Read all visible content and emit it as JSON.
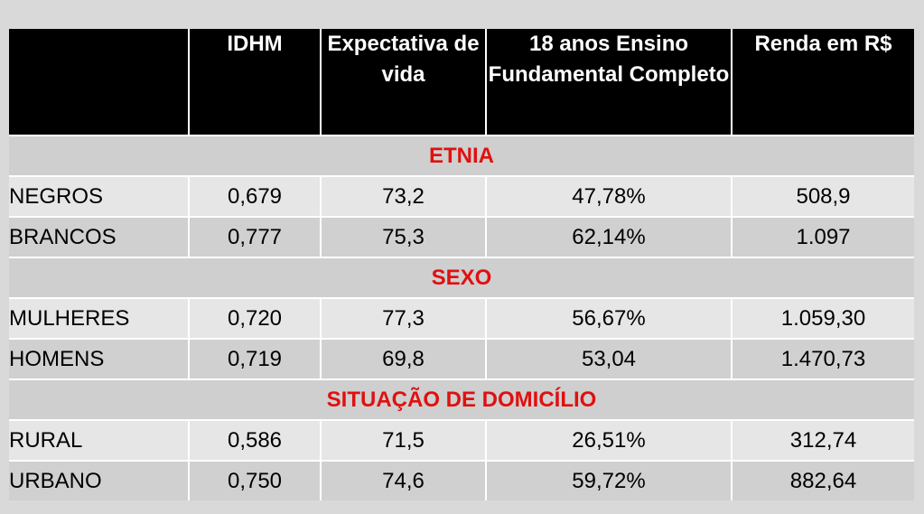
{
  "headers": [
    "",
    "IDHM",
    "Expectativa de vida",
    "18 anos Ensino Fundamental Completo",
    "Renda em R$"
  ],
  "sections": [
    {
      "title": "ETNIA",
      "rows": [
        [
          "NEGROS",
          "0,679",
          "73,2",
          "47,78%",
          "508,9"
        ],
        [
          "BRANCOS",
          "0,777",
          "75,3",
          "62,14%",
          "1.097"
        ]
      ]
    },
    {
      "title": "SEXO",
      "rows": [
        [
          "MULHERES",
          "0,720",
          "77,3",
          "56,67%",
          "1.059,30"
        ],
        [
          "HOMENS",
          "0,719",
          "69,8",
          "53,04",
          "1.470,73"
        ]
      ]
    },
    {
      "title": "SITUAÇÃO DE DOMICÍLIO",
      "rows": [
        [
          "RURAL",
          "0,586",
          "71,5",
          "26,51%",
          "312,74"
        ],
        [
          "URBANO",
          "0,750",
          "74,6",
          "59,72%",
          "882,64"
        ]
      ]
    }
  ],
  "colors": {
    "header_bg": "#000000",
    "header_text": "#ffffff",
    "section_text": "#e01010",
    "row_light": "#e6e6e6",
    "row_dark": "#d0d0d0"
  }
}
